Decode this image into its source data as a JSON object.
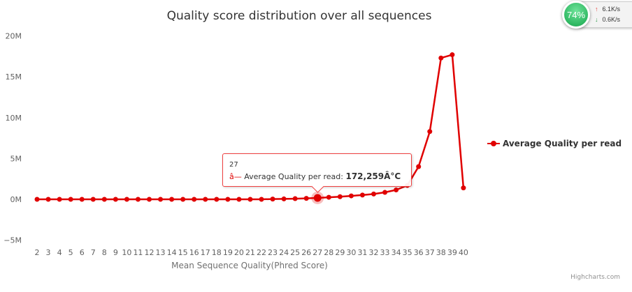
{
  "chart_data": {
    "type": "line",
    "title": "Quality score distribution over all sequences",
    "xlabel": "Mean Sequence Quality(Phred Score)",
    "ylabel": "",
    "x": [
      2,
      3,
      4,
      5,
      6,
      7,
      8,
      9,
      10,
      11,
      12,
      13,
      14,
      15,
      16,
      17,
      18,
      19,
      20,
      21,
      22,
      23,
      24,
      25,
      26,
      27,
      28,
      29,
      30,
      31,
      32,
      33,
      34,
      35,
      36,
      37,
      38,
      39,
      40
    ],
    "series": [
      {
        "name": "Average Quality per read",
        "color": "#e00000",
        "values": [
          0,
          0,
          0,
          0,
          0,
          0,
          0,
          0,
          0,
          0,
          0,
          0,
          0,
          0,
          0,
          0,
          0,
          0,
          0,
          0,
          0,
          30000,
          50000,
          80000,
          120000,
          172259,
          250000,
          320000,
          420000,
          520000,
          650000,
          850000,
          1150000,
          1700000,
          4000000,
          8300000,
          17300000,
          17700000,
          1400000
        ]
      }
    ],
    "ylim": [
      -5000000,
      20000000
    ],
    "yticks": [
      -5000000,
      0,
      5000000,
      10000000,
      15000000,
      20000000
    ],
    "ytick_labels": [
      "−5M",
      "0M",
      "5M",
      "10M",
      "15M",
      "20M"
    ],
    "grid": false,
    "legend": "right",
    "highlight_index": 25,
    "tooltip": {
      "x_label": "27",
      "marker": "â—",
      "series_label": "Average Quality per read: ",
      "value": "172,259Â°C"
    },
    "credits": "Highcharts.com"
  },
  "net_widget": {
    "percent": "74%",
    "upload": "6.1K/s",
    "download": "0.6K/s",
    "up_icon": "up-arrow-icon",
    "down_icon": "down-arrow-icon"
  }
}
